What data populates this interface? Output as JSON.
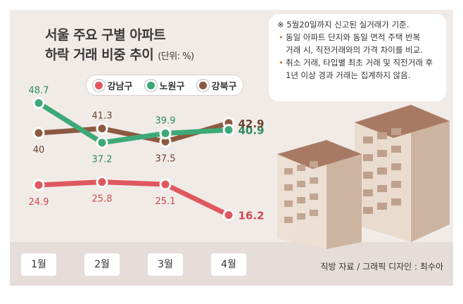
{
  "chart_data": {
    "type": "line",
    "title": "서울 주요 구별 아파트 하락 거래 비중 추이",
    "title_line1": "서울 주요 구별 아파트",
    "title_line2": "하락 거래 비중 추이",
    "unit": "(단위: %)",
    "categories": [
      "1월",
      "2월",
      "3월",
      "4월"
    ],
    "series": [
      {
        "name": "강남구",
        "values": [
          24.9,
          25.8,
          25.1,
          16.2
        ],
        "color": "#e0575f",
        "label_color": "#cf4a52"
      },
      {
        "name": "노원구",
        "values": [
          48.7,
          37.2,
          39.9,
          40.9
        ],
        "color": "#3ea978",
        "label_color": "#2c8a5f"
      },
      {
        "name": "강북구",
        "values": [
          40,
          41.3,
          37.5,
          42.9
        ],
        "color": "#8c5a40",
        "label_color": "#6b4430"
      }
    ],
    "legend_position": "top-left",
    "grid": false
  },
  "notes": {
    "line1": "※ 5월20일까지 신고된 실거래가 기준.",
    "line2": "동일 아파트 단지와 동일 면적 주택 반복",
    "line3": "거래 시, 직전거래와의 가격 차이를 비교.",
    "line4": "취소 거래, 타입별 최초 거래 및 직전거래 후",
    "line5": "1년 이상 경과 거래는 집계하지 않음."
  },
  "source": "직방 자료 / 그래픽 디자인 : 최수아"
}
